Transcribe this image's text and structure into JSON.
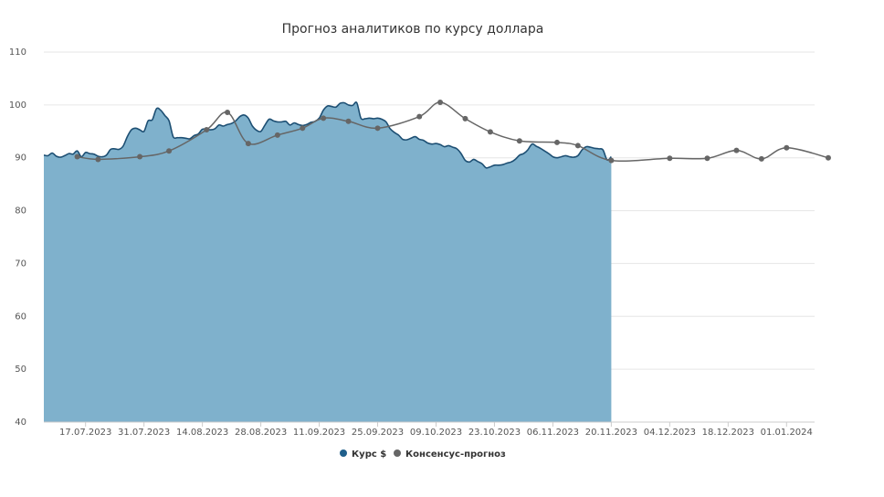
{
  "chart_data": {
    "type": "area",
    "title": "Прогноз аналитиков по курсу доллара",
    "xlabel": "",
    "ylabel": "",
    "ylim": [
      40,
      110
    ],
    "y_ticks": [
      40,
      50,
      60,
      70,
      80,
      90,
      100,
      110
    ],
    "x_ticks": [
      "17.07.2023",
      "31.07.2023",
      "14.08.2023",
      "28.08.2023",
      "11.09.2023",
      "25.09.2023",
      "09.10.2023",
      "23.10.2023",
      "06.11.2023",
      "20.11.2023",
      "04.12.2023",
      "18.12.2023",
      "01.01.2024"
    ],
    "grid": true,
    "legend_position": "bottom-center",
    "colors": {
      "rate_line": "#1d4f73",
      "rate_fill": "#7fb1cc",
      "rate_marker": "#1f5f8b",
      "consensus": "#666666",
      "grid": "#e6e6e6",
      "axis": "#cccccc"
    },
    "series": [
      {
        "name": "Курс $",
        "type": "area",
        "points": [
          [
            "2023-07-07",
            90.5
          ],
          [
            "2023-07-08",
            90.4
          ],
          [
            "2023-07-09",
            90.9
          ],
          [
            "2023-07-10",
            90.3
          ],
          [
            "2023-07-11",
            90.1
          ],
          [
            "2023-07-12",
            90.4
          ],
          [
            "2023-07-13",
            90.8
          ],
          [
            "2023-07-14",
            90.7
          ],
          [
            "2023-07-15",
            91.3
          ],
          [
            "2023-07-16",
            90.2
          ],
          [
            "2023-07-17",
            91.0
          ],
          [
            "2023-07-18",
            90.8
          ],
          [
            "2023-07-19",
            90.7
          ],
          [
            "2023-07-20",
            90.3
          ],
          [
            "2023-07-21",
            90.2
          ],
          [
            "2023-07-22",
            90.5
          ],
          [
            "2023-07-23",
            91.6
          ],
          [
            "2023-07-24",
            91.7
          ],
          [
            "2023-07-25",
            91.6
          ],
          [
            "2023-07-26",
            92.2
          ],
          [
            "2023-07-27",
            94.0
          ],
          [
            "2023-07-28",
            95.3
          ],
          [
            "2023-07-29",
            95.6
          ],
          [
            "2023-07-30",
            95.3
          ],
          [
            "2023-07-31",
            95.0
          ],
          [
            "2023-08-01",
            97.0
          ],
          [
            "2023-08-02",
            97.2
          ],
          [
            "2023-08-03",
            99.3
          ],
          [
            "2023-08-04",
            99.0
          ],
          [
            "2023-08-05",
            98.0
          ],
          [
            "2023-08-06",
            97.0
          ],
          [
            "2023-08-07",
            94.0
          ],
          [
            "2023-08-08",
            93.8
          ],
          [
            "2023-08-09",
            93.8
          ],
          [
            "2023-08-10",
            93.7
          ],
          [
            "2023-08-11",
            93.6
          ],
          [
            "2023-08-12",
            94.2
          ],
          [
            "2023-08-13",
            94.5
          ],
          [
            "2023-08-14",
            95.4
          ],
          [
            "2023-08-15",
            95.4
          ],
          [
            "2023-08-16",
            95.3
          ],
          [
            "2023-08-17",
            95.5
          ],
          [
            "2023-08-18",
            96.2
          ],
          [
            "2023-08-19",
            96.0
          ],
          [
            "2023-08-20",
            96.3
          ],
          [
            "2023-08-21",
            96.5
          ],
          [
            "2023-08-22",
            97.0
          ],
          [
            "2023-08-23",
            97.8
          ],
          [
            "2023-08-24",
            98.1
          ],
          [
            "2023-08-25",
            97.5
          ],
          [
            "2023-08-26",
            96.0
          ],
          [
            "2023-08-27",
            95.2
          ],
          [
            "2023-08-28",
            95.0
          ],
          [
            "2023-08-29",
            96.2
          ],
          [
            "2023-08-30",
            97.3
          ],
          [
            "2023-08-31",
            97.0
          ],
          [
            "2023-09-01",
            96.8
          ],
          [
            "2023-09-02",
            96.8
          ],
          [
            "2023-09-03",
            96.9
          ],
          [
            "2023-09-04",
            96.2
          ],
          [
            "2023-09-05",
            96.6
          ],
          [
            "2023-09-06",
            96.3
          ],
          [
            "2023-09-07",
            96.1
          ],
          [
            "2023-09-08",
            96.3
          ],
          [
            "2023-09-09",
            96.7
          ],
          [
            "2023-09-10",
            96.9
          ],
          [
            "2023-09-11",
            97.5
          ],
          [
            "2023-09-12",
            99.0
          ],
          [
            "2023-09-13",
            99.8
          ],
          [
            "2023-09-14",
            99.7
          ],
          [
            "2023-09-15",
            99.6
          ],
          [
            "2023-09-16",
            100.3
          ],
          [
            "2023-09-17",
            100.4
          ],
          [
            "2023-09-18",
            100.0
          ],
          [
            "2023-09-19",
            99.9
          ],
          [
            "2023-09-20",
            100.4
          ],
          [
            "2023-09-21",
            97.5
          ],
          [
            "2023-09-22",
            97.4
          ],
          [
            "2023-09-23",
            97.5
          ],
          [
            "2023-09-24",
            97.4
          ],
          [
            "2023-09-25",
            97.5
          ],
          [
            "2023-09-26",
            97.3
          ],
          [
            "2023-09-27",
            96.8
          ],
          [
            "2023-09-28",
            95.5
          ],
          [
            "2023-09-29",
            94.8
          ],
          [
            "2023-09-30",
            94.3
          ],
          [
            "2023-10-01",
            93.5
          ],
          [
            "2023-10-02",
            93.4
          ],
          [
            "2023-10-03",
            93.7
          ],
          [
            "2023-10-04",
            94.0
          ],
          [
            "2023-10-05",
            93.5
          ],
          [
            "2023-10-06",
            93.3
          ],
          [
            "2023-10-07",
            92.8
          ],
          [
            "2023-10-08",
            92.6
          ],
          [
            "2023-10-09",
            92.7
          ],
          [
            "2023-10-10",
            92.5
          ],
          [
            "2023-10-11",
            92.1
          ],
          [
            "2023-10-12",
            92.3
          ],
          [
            "2023-10-13",
            92.0
          ],
          [
            "2023-10-14",
            91.7
          ],
          [
            "2023-10-15",
            90.8
          ],
          [
            "2023-10-16",
            89.5
          ],
          [
            "2023-10-17",
            89.2
          ],
          [
            "2023-10-18",
            89.7
          ],
          [
            "2023-10-19",
            89.3
          ],
          [
            "2023-10-20",
            88.9
          ],
          [
            "2023-10-21",
            88.1
          ],
          [
            "2023-10-22",
            88.3
          ],
          [
            "2023-10-23",
            88.6
          ],
          [
            "2023-10-24",
            88.6
          ],
          [
            "2023-10-25",
            88.7
          ],
          [
            "2023-10-26",
            89.0
          ],
          [
            "2023-10-27",
            89.2
          ],
          [
            "2023-10-28",
            89.7
          ],
          [
            "2023-10-29",
            90.5
          ],
          [
            "2023-10-30",
            90.8
          ],
          [
            "2023-10-31",
            91.5
          ],
          [
            "2023-11-01",
            92.6
          ],
          [
            "2023-11-02",
            92.2
          ],
          [
            "2023-11-03",
            91.8
          ],
          [
            "2023-11-04",
            91.3
          ],
          [
            "2023-11-05",
            90.8
          ],
          [
            "2023-11-06",
            90.2
          ],
          [
            "2023-11-07",
            90.0
          ],
          [
            "2023-11-08",
            90.2
          ],
          [
            "2023-11-09",
            90.4
          ],
          [
            "2023-11-10",
            90.2
          ],
          [
            "2023-11-11",
            90.1
          ],
          [
            "2023-11-12",
            90.4
          ],
          [
            "2023-11-13",
            91.5
          ],
          [
            "2023-11-14",
            92.1
          ],
          [
            "2023-11-15",
            92.0
          ],
          [
            "2023-11-16",
            91.8
          ],
          [
            "2023-11-17",
            91.7
          ],
          [
            "2023-11-18",
            91.5
          ],
          [
            "2023-11-19",
            89.6
          ],
          [
            "2023-11-20",
            90.2
          ]
        ]
      },
      {
        "name": "Консенсус-прогноз",
        "type": "line",
        "points": [
          [
            "2023-07-15",
            90.2
          ],
          [
            "2023-07-20",
            89.7
          ],
          [
            "2023-07-30",
            90.2
          ],
          [
            "2023-08-06",
            91.3
          ],
          [
            "2023-08-15",
            95.3
          ],
          [
            "2023-08-20",
            98.6
          ],
          [
            "2023-08-25",
            92.7
          ],
          [
            "2023-09-01",
            94.3
          ],
          [
            "2023-09-07",
            95.6
          ],
          [
            "2023-09-12",
            97.5
          ],
          [
            "2023-09-18",
            96.9
          ],
          [
            "2023-09-25",
            95.6
          ],
          [
            "2023-10-05",
            97.8
          ],
          [
            "2023-10-10",
            100.5
          ],
          [
            "2023-10-16",
            97.4
          ],
          [
            "2023-10-22",
            94.9
          ],
          [
            "2023-10-29",
            93.2
          ],
          [
            "2023-11-07",
            92.9
          ],
          [
            "2023-11-12",
            92.3
          ],
          [
            "2023-11-20",
            89.5
          ],
          [
            "2023-12-04",
            89.9
          ],
          [
            "2023-12-13",
            89.9
          ],
          [
            "2023-12-20",
            91.4
          ],
          [
            "2023-12-26",
            89.8
          ],
          [
            "2024-01-01",
            91.9
          ],
          [
            "2024-01-11",
            90.0
          ]
        ]
      }
    ]
  }
}
